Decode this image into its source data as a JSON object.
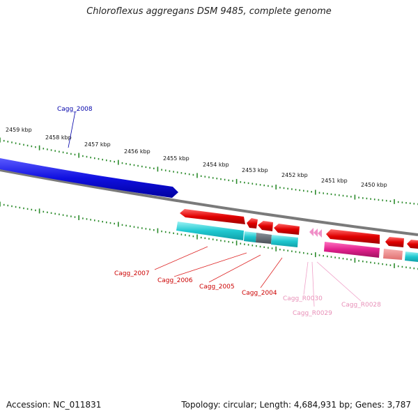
{
  "title": "Chloroflexus aggregans DSM 9485, complete genome",
  "footer": {
    "accession": "Accession: NC_011831",
    "summary": "Topology: circular; Length: 4,684,931 bp; Genes: 3,787"
  },
  "scale_labels": [
    "2459 kbp",
    "2458 kbp",
    "2457 kbp",
    "2456 kbp",
    "2455 kbp",
    "2454 kbp",
    "2453 kbp",
    "2452 kbp",
    "2451 kbp",
    "2450 kbp"
  ],
  "gene_labels": [
    {
      "id": "Cagg_2008",
      "color": "#0000aa"
    },
    {
      "id": "Cagg_2007",
      "color": "#cc0000"
    },
    {
      "id": "Cagg_2006",
      "color": "#cc0000"
    },
    {
      "id": "Cagg_2005",
      "color": "#cc0000"
    },
    {
      "id": "Cagg_2004",
      "color": "#cc0000"
    },
    {
      "id": "Cagg_R0030",
      "color": "#e890b8"
    },
    {
      "id": "Cagg_R0029",
      "color": "#e890b8"
    },
    {
      "id": "Cagg_R0028",
      "color": "#e890b8"
    }
  ],
  "colors": {
    "forward_cds": "#1010e0",
    "reverse_cds": "#e00000",
    "trna": "#f080c0",
    "rrna": "#e0208c",
    "cyan_feature": "#20c8d0",
    "grey_feature": "#606870",
    "backbone": "#808080",
    "ticks": "#2a8a2a"
  }
}
